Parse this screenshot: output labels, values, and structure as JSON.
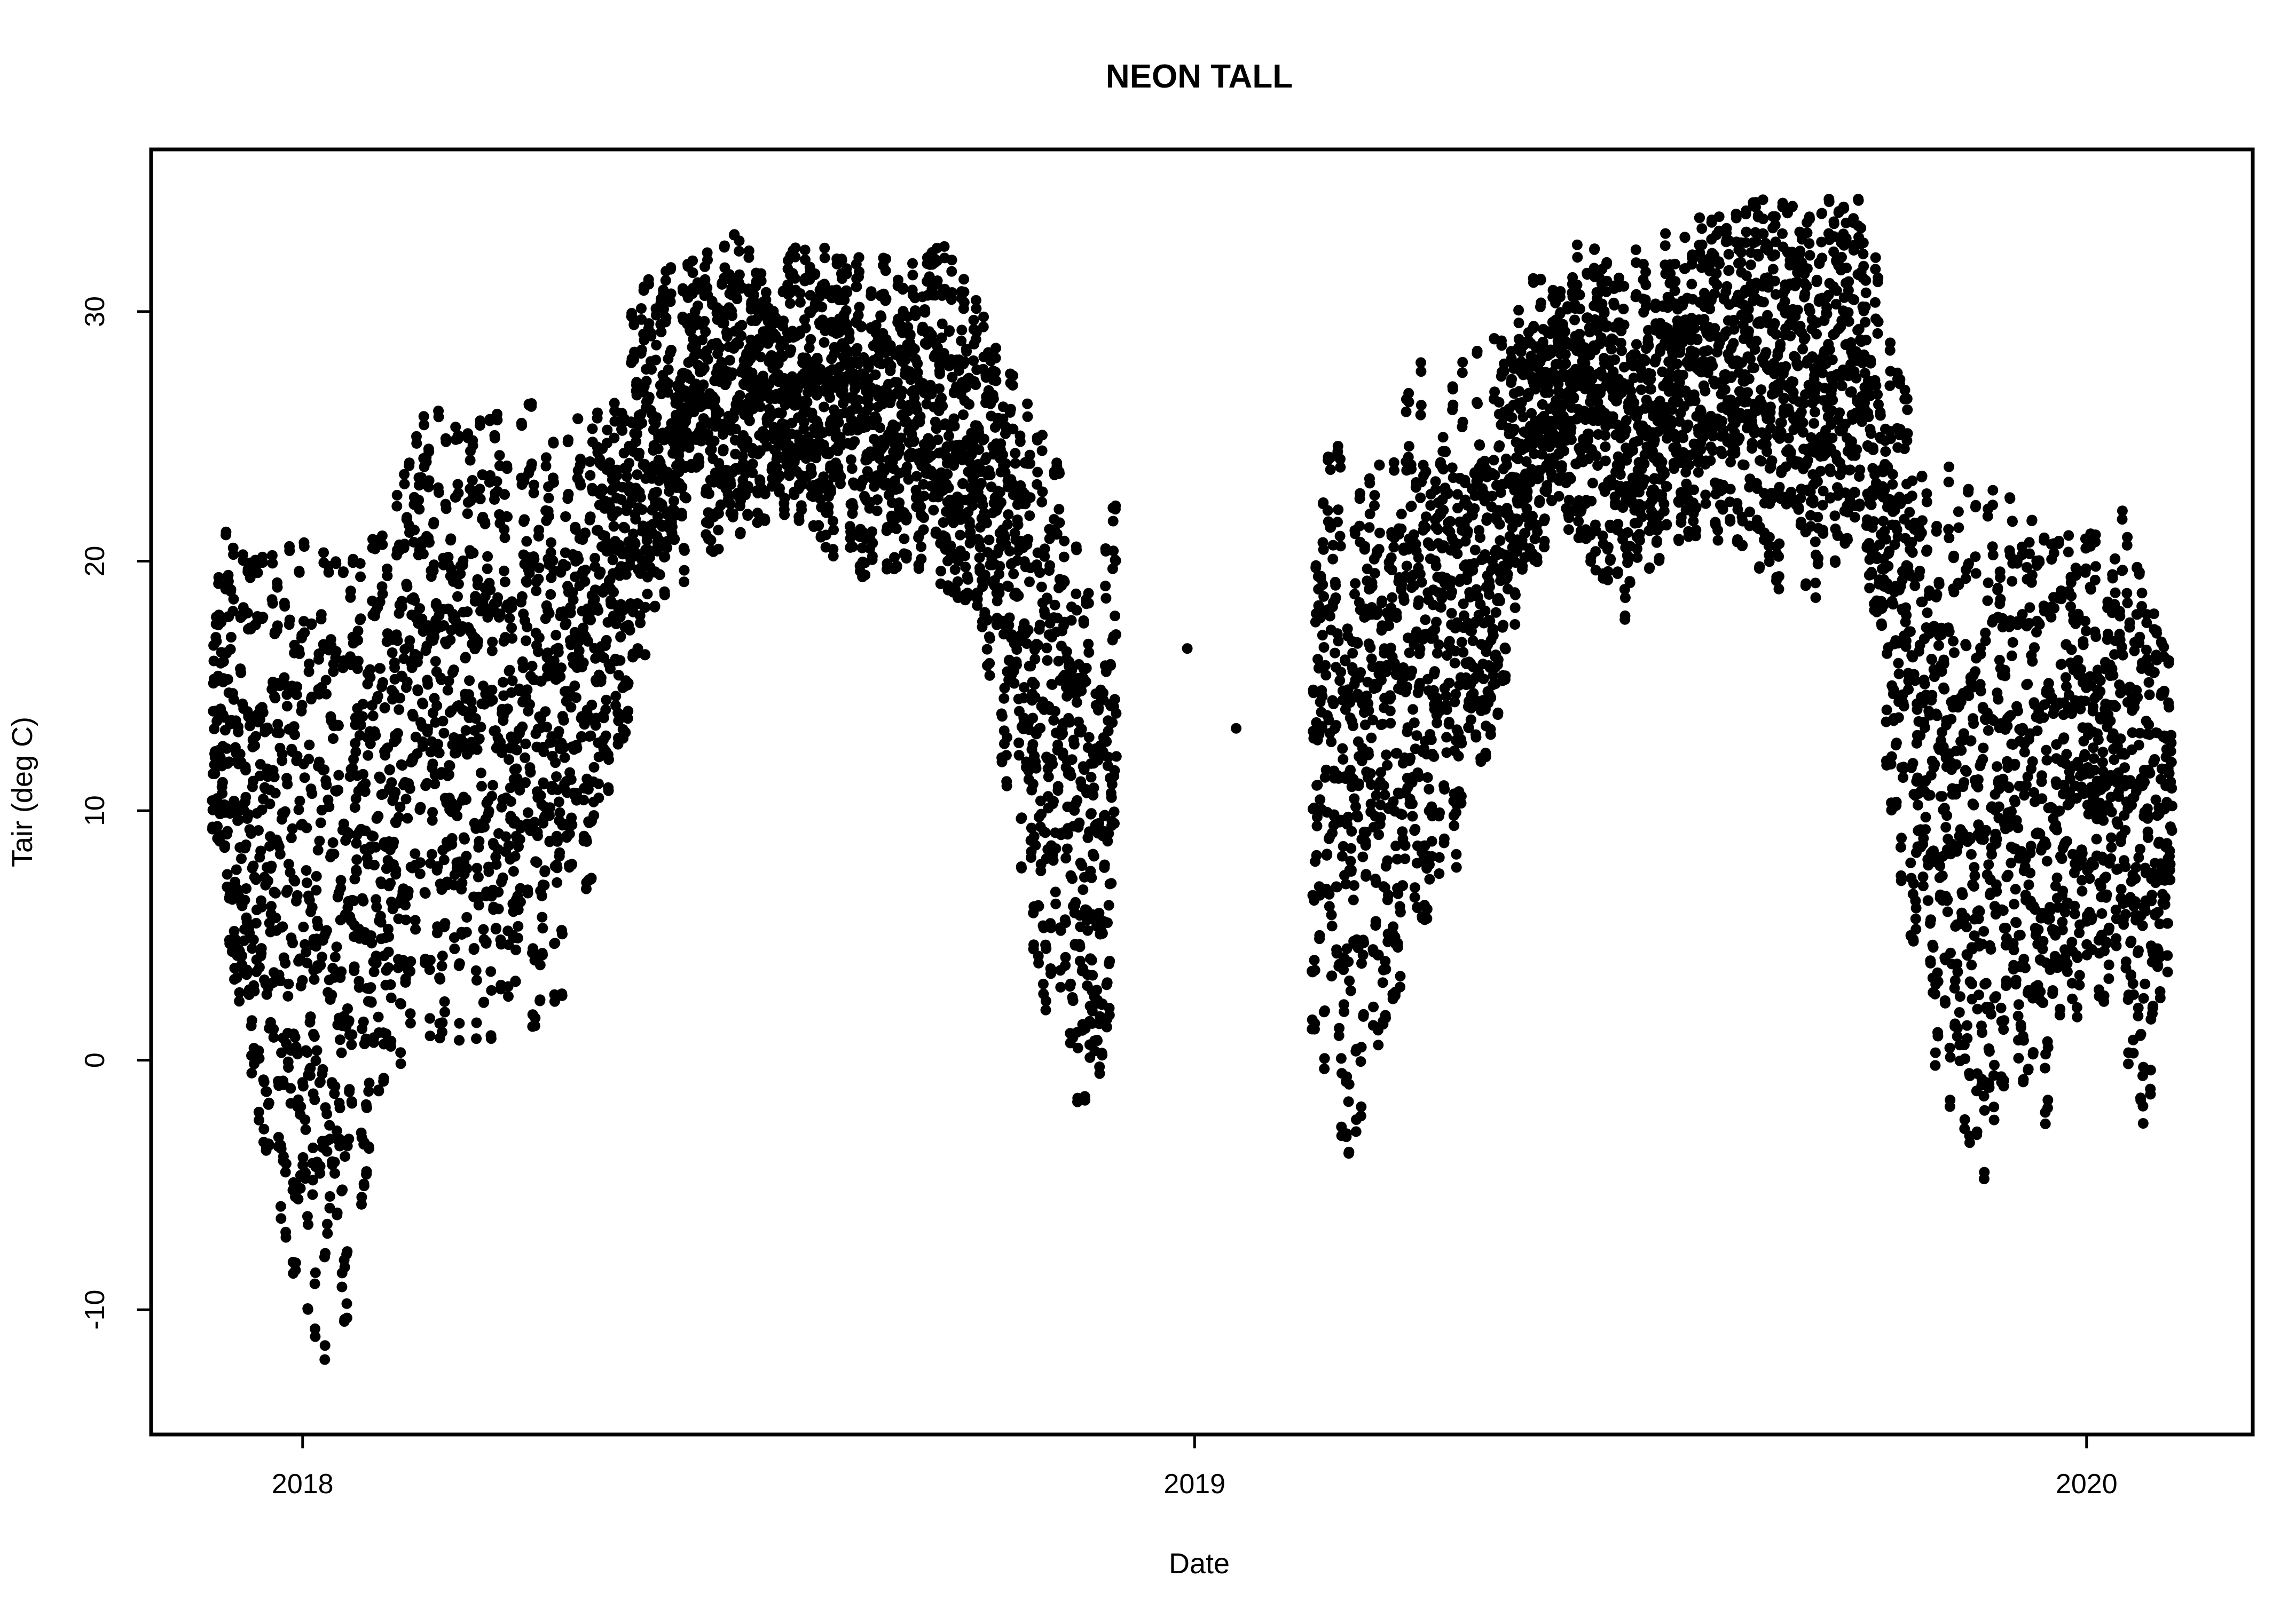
{
  "chart_data": {
    "type": "scatter",
    "title": "NEON TALL",
    "xlabel": "Date",
    "ylabel": "Tair (deg C)",
    "x_axis": "date",
    "xlim": [
      "2017-10-31",
      "2020-03-09"
    ],
    "ylim": [
      -15,
      36.5
    ],
    "x_ticks": [
      "2018",
      "2019",
      "2020"
    ],
    "y_ticks": [
      -10,
      0,
      10,
      20,
      30
    ],
    "grid": false,
    "legend": "none",
    "marker_color": "#000000",
    "observation_period_1": [
      "2017-11-24",
      "2018-11-30"
    ],
    "observation_period_2": [
      "2019-02-18",
      "2020-02-05"
    ],
    "isolated_points": [
      {
        "x": "2018-12-29",
        "y": 16.5
      },
      {
        "x": "2019-01-18",
        "y": 13.3
      }
    ],
    "trend_profile": [
      {
        "x": "2017-11-25",
        "low": 9.0,
        "high": 21.5
      },
      {
        "x": "2017-12-10",
        "low": -0.5,
        "high": 20.0
      },
      {
        "x": "2018-01-01",
        "low": -10.5,
        "high": 21.3
      },
      {
        "x": "2018-01-15",
        "low": -13.0,
        "high": 20.0
      },
      {
        "x": "2018-02-01",
        "low": -1.5,
        "high": 21.0
      },
      {
        "x": "2018-02-20",
        "low": 1.0,
        "high": 26.3
      },
      {
        "x": "2018-03-10",
        "low": 0.8,
        "high": 25.3
      },
      {
        "x": "2018-04-01",
        "low": 0.8,
        "high": 27.0
      },
      {
        "x": "2018-04-20",
        "low": 3.0,
        "high": 25.0
      },
      {
        "x": "2018-05-05",
        "low": 10.0,
        "high": 28.0
      },
      {
        "x": "2018-05-25",
        "low": 18.0,
        "high": 31.8
      },
      {
        "x": "2018-06-15",
        "low": 20.5,
        "high": 32.5
      },
      {
        "x": "2018-07-05",
        "low": 21.5,
        "high": 33.2
      },
      {
        "x": "2018-07-25",
        "low": 21.5,
        "high": 32.2
      },
      {
        "x": "2018-08-15",
        "low": 19.5,
        "high": 32.7
      },
      {
        "x": "2018-09-05",
        "low": 20.0,
        "high": 31.5
      },
      {
        "x": "2018-09-20",
        "low": 19.0,
        "high": 32.8
      },
      {
        "x": "2018-10-05",
        "low": 18.0,
        "high": 29.8
      },
      {
        "x": "2018-10-20",
        "low": 8.0,
        "high": 27.0
      },
      {
        "x": "2018-11-05",
        "low": 0.0,
        "high": 24.0
      },
      {
        "x": "2018-11-20",
        "low": -3.0,
        "high": 18.0
      },
      {
        "x": "2018-11-30",
        "low": 4.0,
        "high": 23.0
      },
      {
        "x": "2019-02-18",
        "low": 1.2,
        "high": 24.5
      },
      {
        "x": "2019-03-05",
        "low": -4.0,
        "high": 25.0
      },
      {
        "x": "2019-03-20",
        "low": 1.5,
        "high": 24.5
      },
      {
        "x": "2019-04-05",
        "low": 5.5,
        "high": 28.3
      },
      {
        "x": "2019-04-20",
        "low": 8.0,
        "high": 28.5
      },
      {
        "x": "2019-05-05",
        "low": 14.0,
        "high": 29.0
      },
      {
        "x": "2019-05-20",
        "low": 20.0,
        "high": 31.5
      },
      {
        "x": "2019-06-05",
        "low": 21.5,
        "high": 32.7
      },
      {
        "x": "2019-06-25",
        "low": 17.5,
        "high": 32.0
      },
      {
        "x": "2019-07-15",
        "low": 21.0,
        "high": 33.3
      },
      {
        "x": "2019-08-05",
        "low": 21.0,
        "high": 34.2
      },
      {
        "x": "2019-08-25",
        "low": 19.0,
        "high": 34.3
      },
      {
        "x": "2019-09-15",
        "low": 18.5,
        "high": 34.4
      },
      {
        "x": "2019-10-01",
        "low": 22.0,
        "high": 34.6
      },
      {
        "x": "2019-10-15",
        "low": 8.0,
        "high": 27.5
      },
      {
        "x": "2019-11-01",
        "low": -1.0,
        "high": 24.0
      },
      {
        "x": "2019-11-15",
        "low": -7.0,
        "high": 23.0
      },
      {
        "x": "2019-12-01",
        "low": -0.5,
        "high": 22.5
      },
      {
        "x": "2019-12-15",
        "low": -2.5,
        "high": 21.0
      },
      {
        "x": "2020-01-01",
        "low": 3.0,
        "high": 21.0
      },
      {
        "x": "2020-01-15",
        "low": 2.0,
        "high": 22.0
      },
      {
        "x": "2020-01-25",
        "low": -5.0,
        "high": 18.5
      },
      {
        "x": "2020-02-05",
        "low": 5.5,
        "high": 16.0
      }
    ]
  }
}
